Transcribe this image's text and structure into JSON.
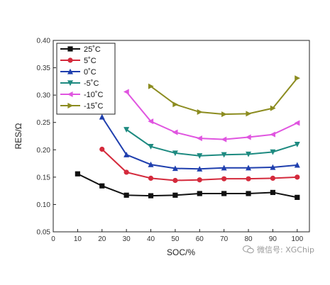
{
  "chart_data": {
    "type": "line",
    "title": "",
    "xlabel": "SOC/%",
    "ylabel": "RES/Ω",
    "xlim": [
      0,
      105
    ],
    "ylim": [
      0.05,
      0.4
    ],
    "xticks": [
      0,
      10,
      20,
      30,
      40,
      50,
      60,
      70,
      80,
      90,
      100
    ],
    "yticks": [
      0.05,
      0.1,
      0.15,
      0.2,
      0.25,
      0.3,
      0.35,
      0.4
    ],
    "ytick_labels": [
      "0.05",
      "0.10",
      "0.15",
      "0.20",
      "0.25",
      "0.30",
      "0.35",
      "0.40"
    ],
    "grid": false,
    "legend_position": "top-left",
    "series": [
      {
        "name": "25˚C",
        "color": "#111111",
        "marker": "square",
        "x": [
          10,
          20,
          30,
          40,
          50,
          60,
          70,
          80,
          90,
          100
        ],
        "values": [
          0.156,
          0.134,
          0.117,
          0.116,
          0.117,
          0.12,
          0.12,
          0.12,
          0.122,
          0.113
        ]
      },
      {
        "name": "5˚C",
        "color": "#d42a3c",
        "marker": "circle",
        "x": [
          20,
          30,
          40,
          50,
          60,
          70,
          80,
          90,
          100
        ],
        "values": [
          0.201,
          0.159,
          0.148,
          0.144,
          0.145,
          0.147,
          0.147,
          0.148,
          0.15
        ]
      },
      {
        "name": "0˚C",
        "color": "#1f3fae",
        "marker": "triangle-up",
        "x": [
          20,
          30,
          40,
          50,
          60,
          70,
          80,
          90,
          100
        ],
        "values": [
          0.26,
          0.191,
          0.173,
          0.166,
          0.165,
          0.167,
          0.167,
          0.168,
          0.172
        ]
      },
      {
        "name": "-5˚C",
        "color": "#1d8a80",
        "marker": "triangle-down",
        "x": [
          30,
          40,
          50,
          60,
          70,
          80,
          90,
          100
        ],
        "values": [
          0.237,
          0.206,
          0.194,
          0.189,
          0.191,
          0.192,
          0.196,
          0.21
        ]
      },
      {
        "name": "-10˚C",
        "color": "#e055e0",
        "marker": "triangle-left",
        "x": [
          30,
          40,
          50,
          60,
          70,
          80,
          90,
          100
        ],
        "values": [
          0.306,
          0.252,
          0.232,
          0.221,
          0.219,
          0.223,
          0.228,
          0.249
        ]
      },
      {
        "name": "-15˚C",
        "color": "#8c8c20",
        "marker": "triangle-right",
        "x": [
          40,
          50,
          60,
          70,
          80,
          90,
          100
        ],
        "values": [
          0.316,
          0.283,
          0.269,
          0.265,
          0.266,
          0.276,
          0.331
        ]
      }
    ]
  },
  "watermark": {
    "text": "微信号: XGChip",
    "icon": "wechat-icon"
  }
}
